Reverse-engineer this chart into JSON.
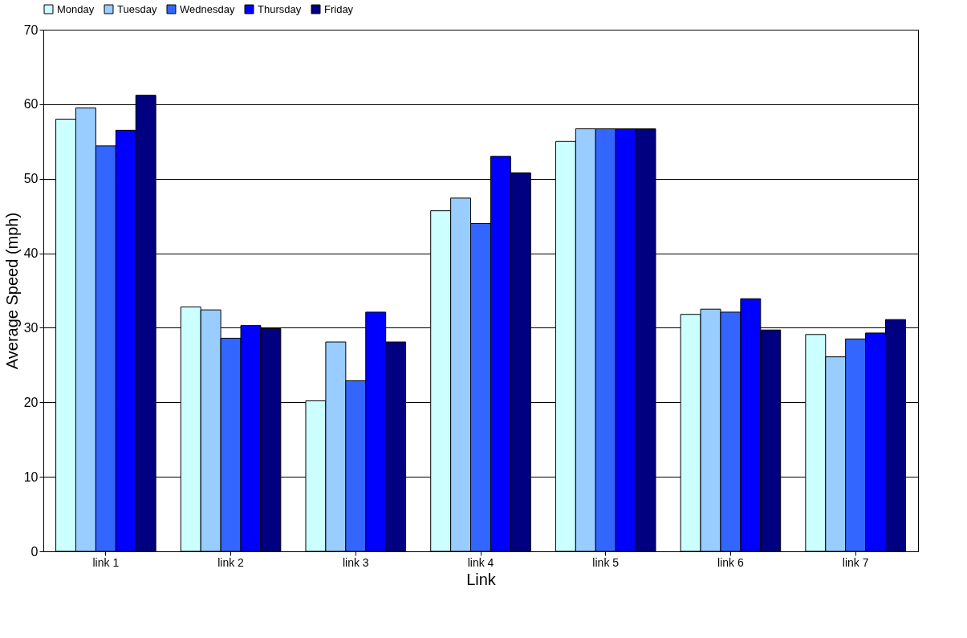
{
  "chart_data": {
    "type": "bar",
    "xlabel": "Link",
    "ylabel": "Average Speed (mph)",
    "categories": [
      "link 1",
      "link 2",
      "link 3",
      "link 4",
      "link 5",
      "link 6",
      "link 7"
    ],
    "series": [
      {
        "name": "Monday",
        "color": "#ccffff",
        "values": [
          58.0,
          32.8,
          20.2,
          45.7,
          55.0,
          31.8,
          29.1
        ]
      },
      {
        "name": "Tuesday",
        "color": "#99ccff",
        "values": [
          59.5,
          32.4,
          28.1,
          47.4,
          56.7,
          32.5,
          26.1
        ]
      },
      {
        "name": "Wednesday",
        "color": "#3366ff",
        "values": [
          54.4,
          28.6,
          22.9,
          44.0,
          56.7,
          32.1,
          28.5
        ]
      },
      {
        "name": "Thursday",
        "color": "#0000ff",
        "values": [
          56.5,
          30.3,
          32.1,
          53.0,
          56.7,
          33.9,
          29.3
        ]
      },
      {
        "name": "Friday",
        "color": "#000080",
        "values": [
          61.2,
          29.9,
          28.1,
          50.8,
          56.7,
          29.7,
          31.1
        ]
      }
    ],
    "ylim": [
      0,
      70
    ],
    "yticks": [
      0,
      10,
      20,
      30,
      40,
      50,
      60,
      70
    ],
    "grid": "y",
    "legend": "top"
  }
}
